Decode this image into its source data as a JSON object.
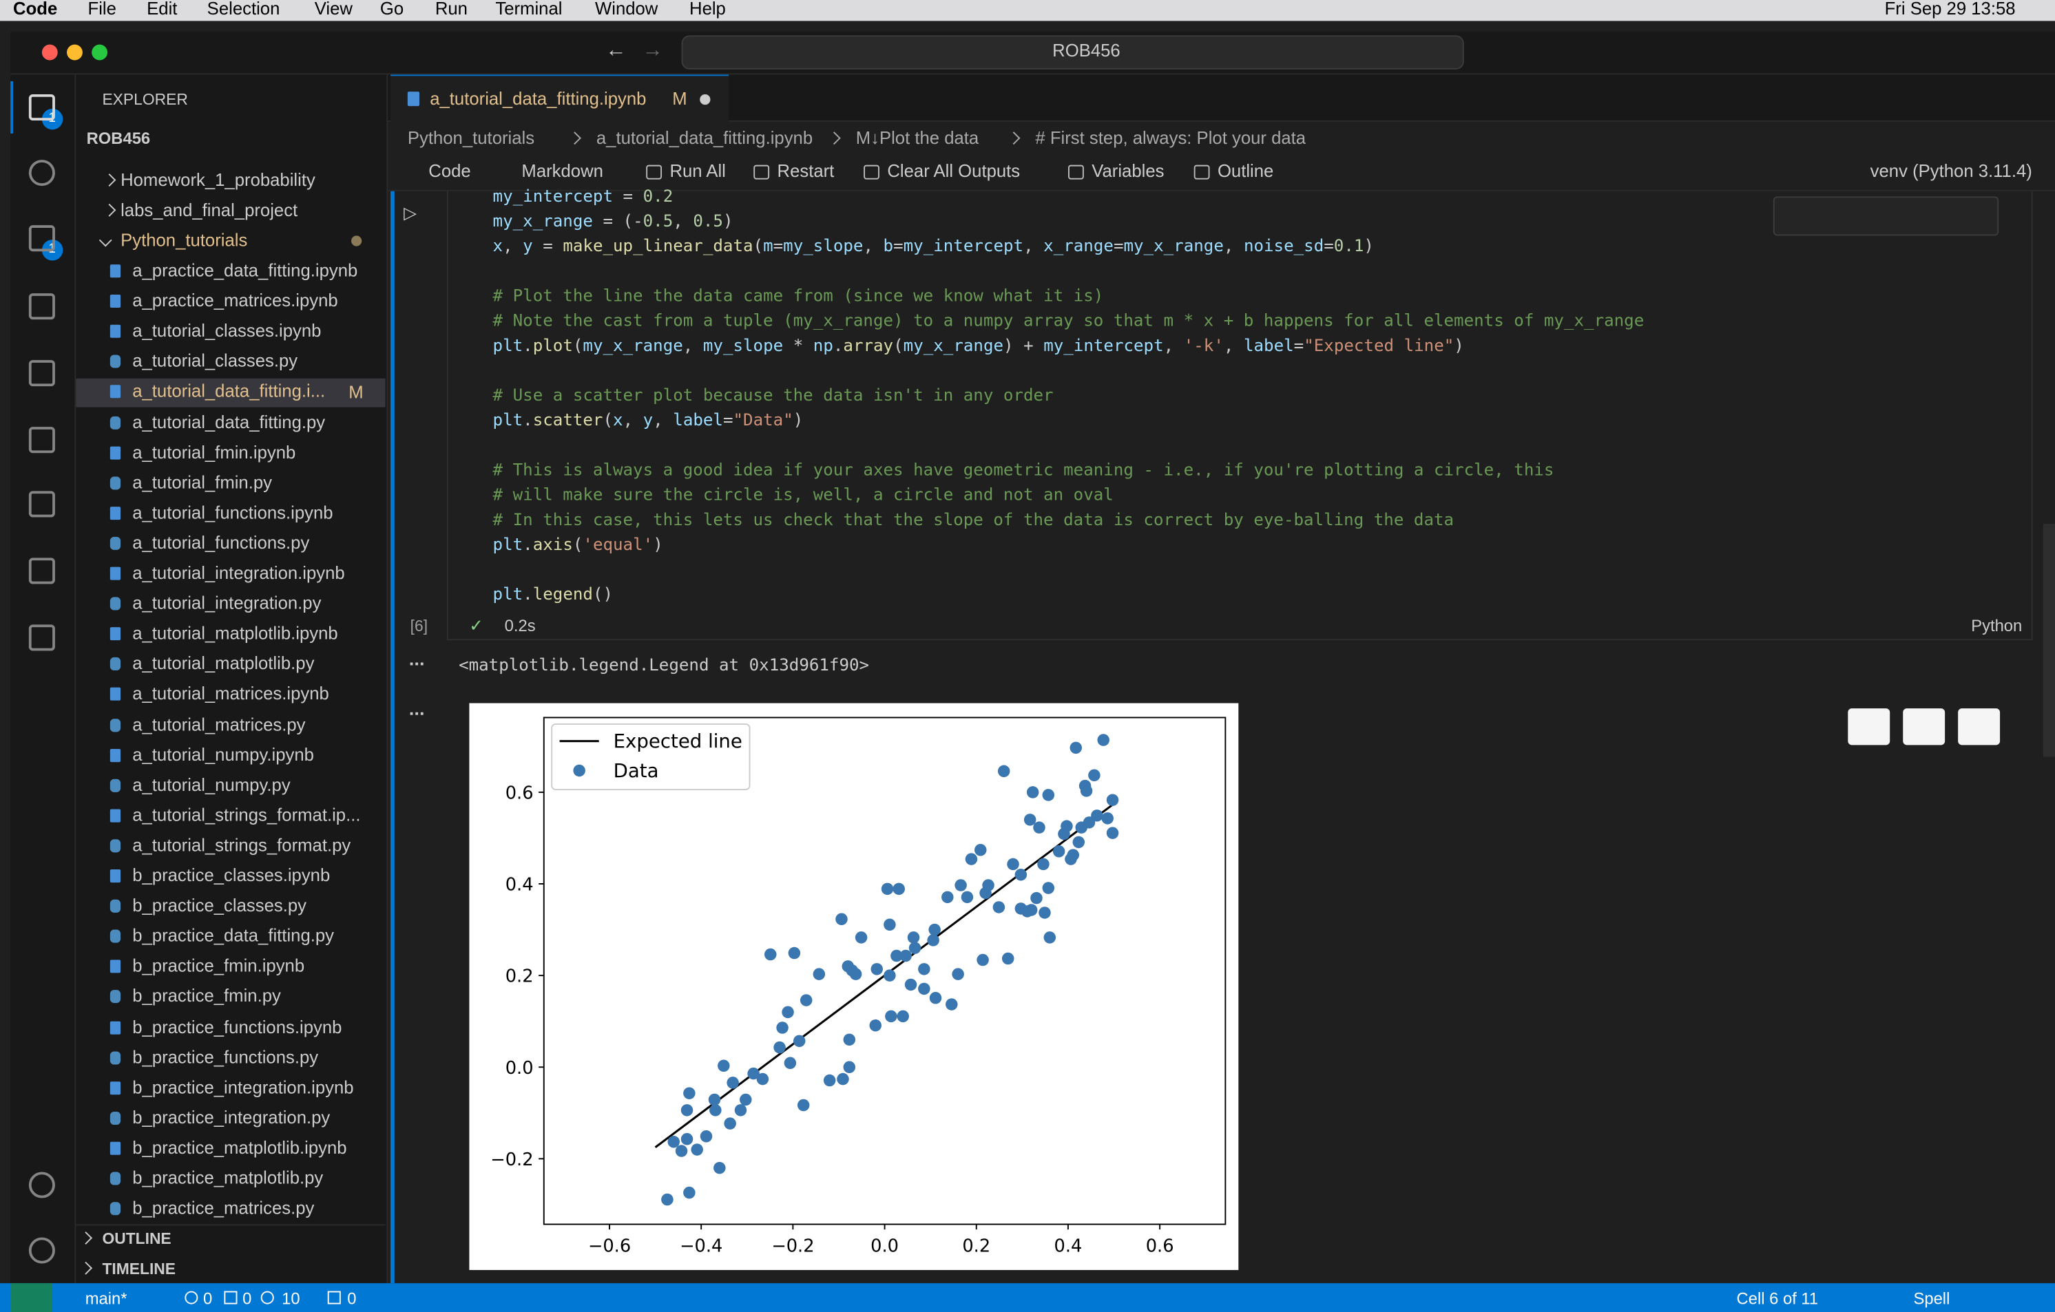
{
  "menubar": {
    "app": "Code",
    "menus": [
      "File",
      "Edit",
      "Selection",
      "View",
      "Go",
      "Run",
      "Terminal",
      "Window",
      "Help"
    ],
    "clock": "Fri Sep 29  13:58"
  },
  "titlebar": {
    "search": "ROB456"
  },
  "activity_badges": [
    "1",
    "1"
  ],
  "explorer": {
    "title": "EXPLORER",
    "root": "ROB456",
    "folders": [
      "Homework_1_probability",
      "labs_and_final_project",
      "Python_tutorials"
    ],
    "files": [
      "a_practice_data_fitting.ipynb",
      "a_practice_matrices.ipynb",
      "a_tutorial_classes.ipynb",
      "a_tutorial_classes.py",
      "a_tutorial_data_fitting.i...",
      "a_tutorial_data_fitting.py",
      "a_tutorial_fmin.ipynb",
      "a_tutorial_fmin.py",
      "a_tutorial_functions.ipynb",
      "a_tutorial_functions.py",
      "a_tutorial_integration.ipynb",
      "a_tutorial_integration.py",
      "a_tutorial_matplotlib.ipynb",
      "a_tutorial_matplotlib.py",
      "a_tutorial_matrices.ipynb",
      "a_tutorial_matrices.py",
      "a_tutorial_numpy.ipynb",
      "a_tutorial_numpy.py",
      "a_tutorial_strings_format.ip...",
      "a_tutorial_strings_format.py",
      "b_practice_classes.ipynb",
      "b_practice_classes.py",
      "b_practice_data_fitting.py",
      "b_practice_fmin.ipynb",
      "b_practice_fmin.py",
      "b_practice_functions.ipynb",
      "b_practice_functions.py",
      "b_practice_integration.ipynb",
      "b_practice_integration.py",
      "b_practice_matplotlib.ipynb",
      "b_practice_matplotlib.py",
      "b_practice_matrices.py"
    ],
    "active_file_status": "M",
    "sections": [
      "OUTLINE",
      "TIMELINE"
    ]
  },
  "tab": {
    "name": "a_tutorial_data_fitting.ipynb",
    "status": "M"
  },
  "breadcrumbs": [
    "Python_tutorials",
    "a_tutorial_data_fitting.ipynb",
    "M↓Plot the data",
    "# First step, always: Plot your data"
  ],
  "toolbar": [
    "Code",
    "Markdown",
    "Run All",
    "Restart",
    "Clear All Outputs",
    "Variables",
    "Outline"
  ],
  "kernel": "venv (Python 3.11.4)",
  "cell": {
    "code": [
      [
        "my_intercept = 0.2",
        "my_x_range = (-0.5, 0.5)",
        "x, y = make_up_linear_data(m=my_slope, b=my_intercept, x_range=my_x_range, noise_sd=0.1)"
      ],
      [
        "# Plot the line the data came from (since we know what it is)",
        "#  Note the cast from a tuple (my_x_range) to a numpy array so that m * x + b happens for all elements of my_x_range",
        "plt.plot(my_x_range, my_slope * np.array(my_x_range) + my_intercept, '-k', label=\"Expected line\")"
      ],
      [
        "# Use a scatter plot because the data isn't in any order",
        "plt.scatter(x, y, label=\"Data\")"
      ],
      [
        "# This is always a good idea if your axes have geometric meaning - i.e., if you're plotting a circle, this",
        "#   will make sure the circle is, well, a circle and not an oval",
        "# In this case, this lets us check that the slope of the data is correct by eye-balling the data",
        "plt.axis('equal')"
      ],
      [
        "plt.legend()"
      ]
    ],
    "execution_count": "[6]",
    "duration": "0.2s",
    "language": "Python"
  },
  "output": {
    "text": "<matplotlib.legend.Legend at 0x13d961f90>"
  },
  "chart_data": {
    "type": "scatter",
    "xlim": [
      -0.743,
      0.743
    ],
    "ylim": [
      -0.343,
      0.763
    ],
    "xticks": [
      {
        "value": -0.6,
        "label": "−0.6"
      },
      {
        "value": -0.4,
        "label": "−0.4"
      },
      {
        "value": -0.2,
        "label": "−0.2"
      },
      {
        "value": 0,
        "label": "0.0"
      },
      0.2,
      0.4,
      0.6
    ],
    "yticks": [
      {
        "value": -0.2,
        "label": "−0.2"
      },
      {
        "value": 0,
        "label": "0.0"
      },
      0.2,
      0.4,
      0.6
    ],
    "grid": false,
    "legend": "upper left",
    "series": [
      {
        "name": "Expected line",
        "type": "line",
        "color": "#000000",
        "x": [
          -0.5,
          0.5
        ],
        "values": [
          -0.175,
          0.575
        ]
      },
      {
        "name": "Data",
        "type": "scatter",
        "color": "#3a76af",
        "x": [
          -0.474,
          -0.426,
          -0.46,
          -0.443,
          -0.431,
          -0.409,
          -0.389,
          -0.36,
          -0.431,
          -0.426,
          -0.369,
          -0.371,
          -0.337,
          -0.331,
          -0.351,
          -0.314,
          -0.303,
          -0.286,
          -0.266,
          -0.229,
          -0.223,
          -0.211,
          -0.249,
          -0.197,
          -0.206,
          -0.186,
          -0.177,
          -0.171,
          -0.143,
          -0.12,
          -0.094,
          -0.091,
          -0.08,
          -0.077,
          -0.077,
          -0.071,
          -0.063,
          -0.051,
          -0.02,
          -0.017,
          0.006,
          0.011,
          0.014,
          0.031,
          0.011,
          0.026,
          0.04,
          0.046,
          0.057,
          0.063,
          0.066,
          0.086,
          0.086,
          0.106,
          0.109,
          0.111,
          0.137,
          0.146,
          0.16,
          0.166,
          0.18,
          0.189,
          0.209,
          0.214,
          0.22,
          0.226,
          0.249,
          0.26,
          0.269,
          0.28,
          0.297,
          0.297,
          0.311,
          0.32,
          0.317,
          0.323,
          0.331,
          0.337,
          0.346,
          0.349,
          0.357,
          0.357,
          0.36,
          0.38,
          0.391,
          0.397,
          0.406,
          0.411,
          0.417,
          0.423,
          0.429,
          0.437,
          0.44,
          0.446,
          0.457,
          0.463,
          0.477,
          0.486,
          0.497,
          0.497
        ],
        "values": [
          -0.289,
          -0.274,
          -0.163,
          -0.183,
          -0.157,
          -0.18,
          -0.151,
          -0.22,
          -0.094,
          -0.057,
          -0.094,
          -0.071,
          -0.123,
          -0.034,
          0.003,
          -0.094,
          -0.071,
          -0.014,
          -0.026,
          0.043,
          0.086,
          0.12,
          0.246,
          0.249,
          0.009,
          0.057,
          -0.083,
          0.146,
          0.203,
          -0.029,
          0.323,
          -0.026,
          0.22,
          0.06,
          0.0,
          0.211,
          0.203,
          0.283,
          0.091,
          0.214,
          0.389,
          0.2,
          0.111,
          0.389,
          0.311,
          0.243,
          0.111,
          0.243,
          0.18,
          0.283,
          0.26,
          0.214,
          0.171,
          0.277,
          0.3,
          0.151,
          0.371,
          0.137,
          0.203,
          0.397,
          0.371,
          0.454,
          0.474,
          0.234,
          0.38,
          0.397,
          0.349,
          0.646,
          0.237,
          0.443,
          0.42,
          0.346,
          0.34,
          0.343,
          0.54,
          0.6,
          0.369,
          0.523,
          0.443,
          0.337,
          0.594,
          0.391,
          0.283,
          0.471,
          0.509,
          0.526,
          0.454,
          0.463,
          0.697,
          0.491,
          0.523,
          0.614,
          0.603,
          0.534,
          0.637,
          0.549,
          0.714,
          0.543,
          0.583,
          0.511
        ]
      }
    ]
  },
  "statusbar": {
    "branch": "main*",
    "errors": "0",
    "warnings": "0",
    "info": "10",
    "ports": "0",
    "cell": "Cell 6 of 11",
    "spell": "Spell"
  }
}
